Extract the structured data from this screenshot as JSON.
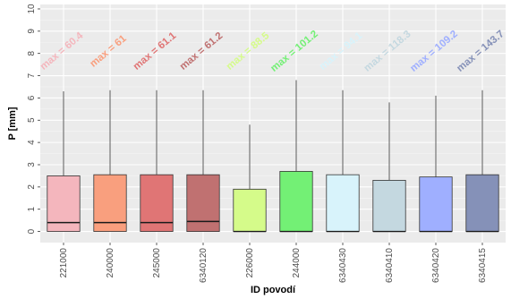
{
  "chart_data": {
    "type": "boxplot",
    "xlabel": "ID povodí",
    "ylabel": "P [mm]",
    "ylim": [
      -0.5,
      10.2
    ],
    "yticks": [
      0,
      1,
      2,
      3,
      4,
      5,
      6,
      7,
      8,
      9,
      10
    ],
    "grid": true,
    "categories": [
      "221000",
      "240000",
      "245000",
      "6340120",
      "226000",
      "244000",
      "6340430",
      "6340410",
      "6340420",
      "6340415"
    ],
    "boxes": [
      {
        "category": "221000",
        "min": 0,
        "q1": 0,
        "median": 0.4,
        "q3": 2.5,
        "whisker_high": 6.3,
        "max_label": "max = 60.4",
        "color": "#f4b6bd"
      },
      {
        "category": "240000",
        "min": 0,
        "q1": 0,
        "median": 0.4,
        "q3": 2.55,
        "whisker_high": 6.35,
        "max_label": "max = 61",
        "color": "#f99f7e"
      },
      {
        "category": "245000",
        "min": 0,
        "q1": 0,
        "median": 0.4,
        "q3": 2.55,
        "whisker_high": 6.35,
        "max_label": "max = 61.1",
        "color": "#e07575"
      },
      {
        "category": "6340120",
        "min": 0,
        "q1": 0,
        "median": 0.45,
        "q3": 2.55,
        "whisker_high": 6.35,
        "max_label": "max = 61.2",
        "color": "#c07171"
      },
      {
        "category": "226000",
        "min": 0,
        "q1": 0,
        "median": 0.0,
        "q3": 1.9,
        "whisker_high": 4.8,
        "max_label": "max = 88.5",
        "color": "#d5fb8a"
      },
      {
        "category": "244000",
        "min": 0,
        "q1": 0,
        "median": 0.0,
        "q3": 2.7,
        "whisker_high": 6.8,
        "max_label": "max = 101.2",
        "color": "#73f075"
      },
      {
        "category": "6340430",
        "min": 0,
        "q1": 0,
        "median": 0.0,
        "q3": 2.55,
        "whisker_high": 6.35,
        "max_label": "max = 94.1",
        "color": "#d8f3fb"
      },
      {
        "category": "6340410",
        "min": 0,
        "q1": 0,
        "median": 0.0,
        "q3": 2.3,
        "whisker_high": 5.8,
        "max_label": "max = 118.3",
        "color": "#c4d8e0"
      },
      {
        "category": "6340420",
        "min": 0,
        "q1": 0,
        "median": 0.0,
        "q3": 2.45,
        "whisker_high": 6.1,
        "max_label": "max = 109.2",
        "color": "#9fafff"
      },
      {
        "category": "6340415",
        "min": 0,
        "q1": 0,
        "median": 0.0,
        "q3": 2.55,
        "whisker_high": 6.35,
        "max_label": "max = 143.7",
        "color": "#8591b8"
      }
    ]
  }
}
